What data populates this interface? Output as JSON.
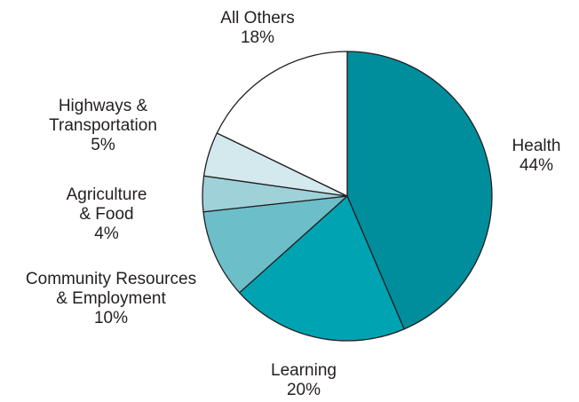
{
  "chart_data": {
    "type": "pie",
    "start_angle_deg": 0,
    "direction": "clockwise",
    "slices": [
      {
        "name": "Health",
        "label_lines": [
          "Health"
        ],
        "value": 44,
        "value_label": "44%",
        "color": "#008d9c"
      },
      {
        "name": "Learning",
        "label_lines": [
          "Learning"
        ],
        "value": 20,
        "value_label": "20%",
        "color": "#00a3b1"
      },
      {
        "name": "Community Resources & Employment",
        "label_lines": [
          "Community Resources",
          "& Employment"
        ],
        "value": 10,
        "value_label": "10%",
        "color": "#6cbec9"
      },
      {
        "name": "Agriculture & Food",
        "label_lines": [
          "Agriculture",
          "& Food"
        ],
        "value": 4,
        "value_label": "4%",
        "color": "#9fd1d9"
      },
      {
        "name": "Highways & Transportation",
        "label_lines": [
          "Highways &",
          "Transportation"
        ],
        "value": 5,
        "value_label": "5%",
        "color": "#d3e9ee"
      },
      {
        "name": "All Others",
        "label_lines": [
          "All Others"
        ],
        "value": 18,
        "value_label": "18%",
        "color": "#ffffff"
      }
    ]
  }
}
